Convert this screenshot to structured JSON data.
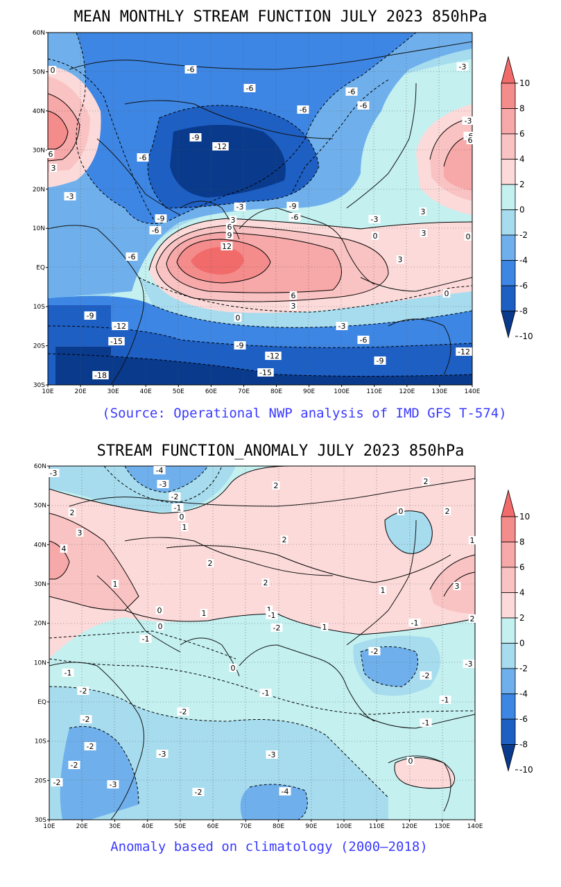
{
  "panel1": {
    "title": "MEAN MONTHLY STREAM FUNCTION JULY 2023 850hPa",
    "source_note": "(Source: Operational NWP analysis of IMD GFS T-574)",
    "lat_labels": [
      "60N",
      "50N",
      "40N",
      "30N",
      "20N",
      "10N",
      "EQ",
      "10S",
      "20S",
      "30S"
    ],
    "lon_labels": [
      "10E",
      "20E",
      "30E",
      "40E",
      "50E",
      "60E",
      "70E",
      "80E",
      "90E",
      "100E",
      "110E",
      "120E",
      "130E",
      "140E"
    ],
    "colorbar": {
      "labels": [
        "10",
        "8",
        "6",
        "4",
        "2",
        "0",
        "-2",
        "-4",
        "-6",
        "-8",
        "-10"
      ],
      "colors": [
        "#f26b6b",
        "#f58c8c",
        "#f7a8a8",
        "#fac3c3",
        "#fcdada",
        "#c4f0f0",
        "#a7dcee",
        "#6fb0ec",
        "#3d86e4",
        "#1e5fc4",
        "#0a3a8c"
      ]
    },
    "contour_labels": [
      {
        "text": "-6"
      },
      {
        "text": "-6"
      },
      {
        "text": "-6"
      },
      {
        "text": "-6"
      },
      {
        "text": "-6"
      },
      {
        "text": "-3"
      },
      {
        "text": "0"
      },
      {
        "text": "-9"
      },
      {
        "text": "-12"
      },
      {
        "text": "-6"
      },
      {
        "text": "6"
      },
      {
        "text": "3"
      },
      {
        "text": "-3"
      },
      {
        "text": "-9"
      },
      {
        "text": "-6"
      },
      {
        "text": "-9"
      },
      {
        "text": "-6"
      },
      {
        "text": "-3"
      },
      {
        "text": "-3"
      },
      {
        "text": "3"
      },
      {
        "text": "6"
      },
      {
        "text": "9"
      },
      {
        "text": "12"
      },
      {
        "text": "-6"
      },
      {
        "text": "3"
      },
      {
        "text": "6"
      },
      {
        "text": "3"
      },
      {
        "text": "0"
      },
      {
        "text": "-9"
      },
      {
        "text": "-12"
      },
      {
        "text": "-15"
      },
      {
        "text": "-9"
      },
      {
        "text": "-3"
      },
      {
        "text": "-6"
      },
      {
        "text": "-12"
      },
      {
        "text": "-9"
      },
      {
        "text": "-15"
      },
      {
        "text": "-12"
      },
      {
        "text": "-18"
      },
      {
        "text": "-6"
      },
      {
        "text": "0"
      },
      {
        "text": "3"
      },
      {
        "text": "6"
      },
      {
        "text": "-3"
      },
      {
        "text": "0"
      },
      {
        "text": "3"
      },
      {
        "text": "0"
      }
    ]
  },
  "panel2": {
    "title": "STREAM FUNCTION_ANOMALY JULY 2023 850hPa",
    "note": "Anomaly based on climatology (2000–2018)",
    "lat_labels": [
      "60N",
      "50N",
      "40N",
      "30N",
      "20N",
      "10N",
      "EQ",
      "10S",
      "20S",
      "30S"
    ],
    "lon_labels": [
      "10E",
      "20E",
      "30E",
      "40E",
      "50E",
      "60E",
      "70E",
      "80E",
      "90E",
      "100E",
      "110E",
      "120E",
      "130E",
      "140E"
    ],
    "colorbar": {
      "labels": [
        "10",
        "8",
        "6",
        "4",
        "2",
        "0",
        "-2",
        "-4",
        "-6",
        "-8",
        "-10"
      ],
      "colors": [
        "#f26b6b",
        "#f58c8c",
        "#f7a8a8",
        "#fac3c3",
        "#fcdada",
        "#c4f0f0",
        "#a7dcee",
        "#6fb0ec",
        "#3d86e4",
        "#1e5fc4",
        "#0a3a8c"
      ]
    },
    "contour_labels": [
      {
        "text": "-3"
      },
      {
        "text": "-4"
      },
      {
        "text": "-3"
      },
      {
        "text": "-2"
      },
      {
        "text": "-1"
      },
      {
        "text": "0"
      },
      {
        "text": "1"
      },
      {
        "text": "2"
      },
      {
        "text": "2"
      },
      {
        "text": "3"
      },
      {
        "text": "4"
      },
      {
        "text": "1"
      },
      {
        "text": "2"
      },
      {
        "text": "2"
      },
      {
        "text": "2"
      },
      {
        "text": "1"
      },
      {
        "text": "2"
      },
      {
        "text": "0"
      },
      {
        "text": "0"
      },
      {
        "text": "1"
      },
      {
        "text": "1"
      },
      {
        "text": "1"
      },
      {
        "text": "2"
      },
      {
        "text": "3"
      },
      {
        "text": "2"
      },
      {
        "text": "-1"
      },
      {
        "text": "-1"
      },
      {
        "text": "-2"
      },
      {
        "text": "-1"
      },
      {
        "text": "0"
      },
      {
        "text": "-2"
      },
      {
        "text": "-2"
      },
      {
        "text": "-1"
      },
      {
        "text": "-3"
      },
      {
        "text": "-2"
      },
      {
        "text": "-2"
      },
      {
        "text": "-2"
      },
      {
        "text": "-1"
      },
      {
        "text": "-1"
      },
      {
        "text": "-2"
      },
      {
        "text": "-3"
      },
      {
        "text": "-2"
      },
      {
        "text": "-3"
      },
      {
        "text": "-3"
      },
      {
        "text": "-4"
      },
      {
        "text": "-2"
      },
      {
        "text": "0"
      },
      {
        "text": "-2"
      },
      {
        "text": "0"
      },
      {
        "text": "-1"
      },
      {
        "text": "1"
      }
    ]
  }
}
